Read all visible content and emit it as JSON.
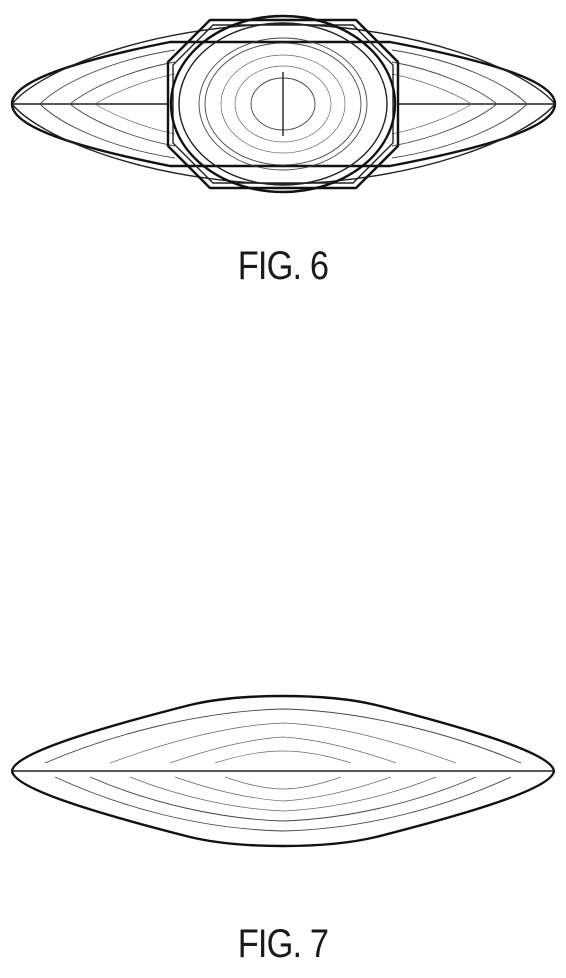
{
  "figures": [
    {
      "label": "FIG. 6",
      "view": "top"
    },
    {
      "label": "FIG. 7",
      "view": "bottom"
    }
  ],
  "colors": {
    "background": "#ffffff",
    "line": "#111111"
  }
}
